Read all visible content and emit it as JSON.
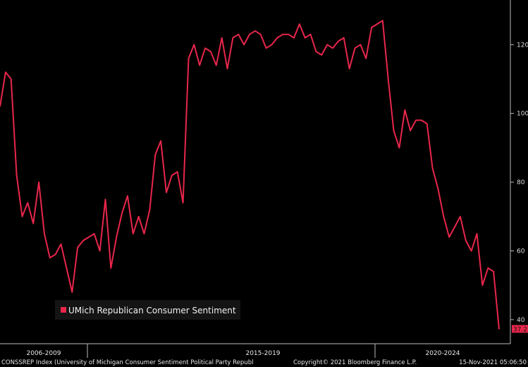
{
  "chart_data": {
    "type": "line",
    "title": "",
    "xlabel": "",
    "ylabel": "",
    "ylim": [
      33,
      133
    ],
    "yticks": [
      40,
      60,
      80,
      100,
      120
    ],
    "x_period_labels": [
      "2006-2009",
      "2015-2019",
      "2020-2024"
    ],
    "legend": {
      "position": "bottom-left"
    },
    "grid": false,
    "series": [
      {
        "name": "UMich Republican Consumer Sentiment",
        "color": "#e8264b",
        "values": [
          102,
          112,
          110,
          82,
          70,
          74,
          68,
          80,
          65,
          58,
          59,
          62,
          55,
          48,
          61,
          63,
          64,
          65,
          60,
          75,
          55,
          64,
          71,
          76,
          65,
          70,
          65,
          72,
          88,
          92,
          77,
          82,
          83,
          74,
          116,
          120,
          114,
          119,
          118,
          114,
          122,
          113,
          122,
          123,
          120,
          123,
          124,
          123,
          119,
          120,
          122,
          123,
          123,
          122,
          126,
          122,
          123,
          118,
          117,
          120,
          119,
          121,
          122,
          113,
          119,
          120,
          116,
          125,
          126,
          127,
          110,
          95,
          90,
          101,
          95,
          98,
          98,
          97,
          84,
          78,
          70,
          64,
          67,
          70,
          63,
          60,
          65,
          50,
          55,
          54,
          37.2
        ]
      }
    ],
    "last_value_label": "37.2"
  },
  "footer": {
    "left": "CONSSREP Index (University of Michigan Consumer Sentiment Political Party Republ",
    "center": "Copyright© 2021 Bloomberg Finance L.P.",
    "right": "15-Nov-2021 05:06:50"
  }
}
